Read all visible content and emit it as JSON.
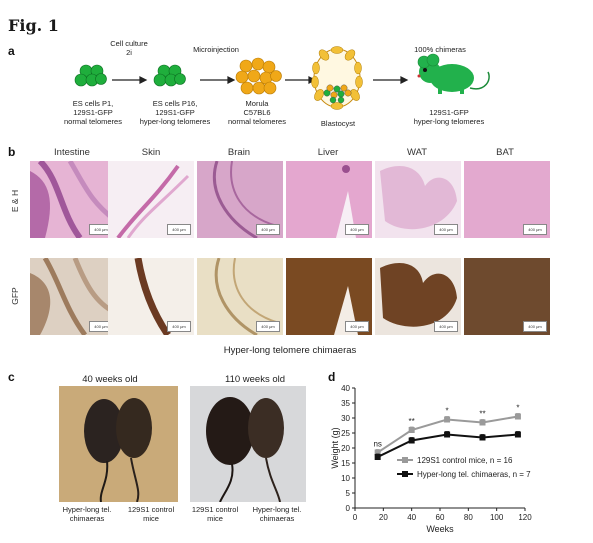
{
  "figure": {
    "title": "Fig. 1",
    "panel_a": "a",
    "panel_b": "b",
    "panel_c": "c",
    "panel_d": "d"
  },
  "panel_a": {
    "step1_caption": "Cell culture\n2i",
    "step2_caption": "Microinjection",
    "step3_caption": "100% chimeras",
    "stage1_label": "ES cells P1,\n129S1-GFP\nnormal telomeres",
    "stage2_label": "ES cells P16,\n129S1-GFP\nhyper-long telomeres",
    "stage3_label": "Morula\nC57BL6\nnormal telomeres",
    "stage4_label": "Blastocyst",
    "stage5_label": "129S1-GFP\nhyper-long telomeres",
    "colors": {
      "gfp_green": "#1fae3c",
      "morula_orange": "#f0a818",
      "mouse_green": "#22b14c"
    }
  },
  "panel_b": {
    "tissues": [
      "Intestine",
      "Skin",
      "Brain",
      "Liver",
      "WAT",
      "BAT"
    ],
    "row_labels": [
      "E & H",
      "GFP"
    ],
    "scale_bar": "400 μm",
    "caption": "Hyper-long telomere chimaeras"
  },
  "panel_c": {
    "photo1_title": "40 weeks old",
    "photo2_title": "110 weeks old",
    "photo1_left_label": "Hyper-long tel.\nchimaeras",
    "photo1_right_label": "129S1 control\nmice",
    "photo2_left_label": "129S1 control\nmice",
    "photo2_right_label": "Hyper-long tel.\nchimaeras"
  },
  "chart_data": {
    "type": "line",
    "xlabel": "Weeks",
    "ylabel": "Weight (g)",
    "xlim": [
      0,
      120
    ],
    "ylim": [
      0,
      40
    ],
    "xticks": [
      0,
      20,
      40,
      60,
      80,
      100,
      120
    ],
    "yticks": [
      0,
      5,
      10,
      15,
      20,
      25,
      30,
      35,
      40
    ],
    "x": [
      16,
      40,
      65,
      90,
      115
    ],
    "series": [
      {
        "name": "129S1 control mice, n = 16",
        "values": [
          18.5,
          26,
          29.5,
          28.5,
          30.5
        ],
        "color": "#9a9a9a",
        "marker": "square"
      },
      {
        "name": "Hyper-long tel. chimaeras, n = 7",
        "values": [
          17,
          22.5,
          24.5,
          23.5,
          24.5
        ],
        "color": "#111111",
        "marker": "square"
      }
    ],
    "significance": [
      "ns",
      "**",
      "*",
      "**",
      "*"
    ],
    "legend_position": "bottom-right"
  }
}
